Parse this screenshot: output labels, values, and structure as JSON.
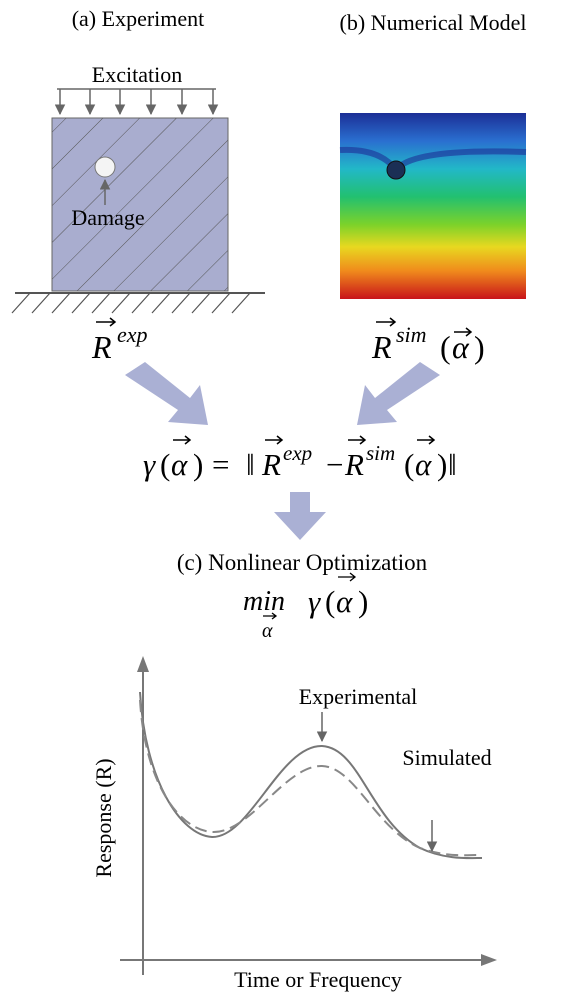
{
  "panel_a": {
    "title": "(a) Experiment",
    "load": "Excitation",
    "defect": "Damage",
    "response": {
      "symbol": "R",
      "superscript": "exp"
    }
  },
  "panel_b": {
    "title": "(b) Numerical Model",
    "response": {
      "symbol": "R",
      "superscript": "sim",
      "argument": "α"
    }
  },
  "objective": {
    "function": "γ",
    "argument": "α",
    "open": "(",
    "close": ")",
    "operator": "=",
    "norm": "‖",
    "measured": {
      "symbol": "R",
      "superscript": "exp"
    },
    "minus": "−",
    "simulated": {
      "symbol": "R",
      "superscript": "sim",
      "argument": "α"
    }
  },
  "panel_c": {
    "title": "(c) Nonlinear Optimization",
    "operator": "min",
    "variable": "α",
    "function": "γ",
    "argument": "α"
  },
  "plot": {
    "y_label": "Response (R)",
    "x_label": "Time or Frequency",
    "curves": [
      "Experimental",
      "Simulated"
    ]
  }
}
